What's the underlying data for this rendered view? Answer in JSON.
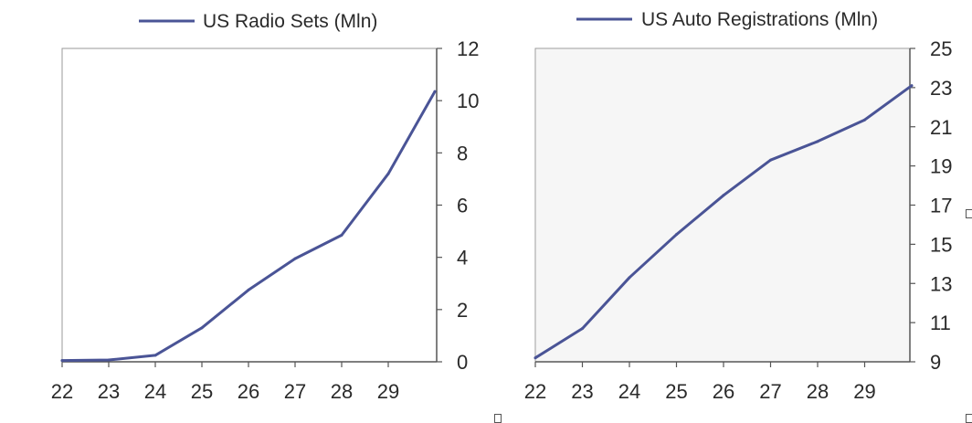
{
  "chart_data": [
    {
      "type": "line",
      "x": [
        "22",
        "23",
        "24",
        "25",
        "26",
        "27",
        "28",
        "29",
        "30"
      ],
      "series": [
        {
          "name": "US Radio Sets (Mln)",
          "values": [
            0.05,
            0.07,
            0.25,
            1.3,
            2.75,
            3.95,
            4.85,
            7.2,
            10.35
          ]
        }
      ],
      "xticks": [
        "22",
        "23",
        "24",
        "25",
        "26",
        "27",
        "28",
        "29"
      ],
      "yticks": [
        "0",
        "2",
        "4",
        "6",
        "8",
        "10",
        "12"
      ],
      "ylim": [
        0,
        12
      ],
      "y_axis_side": "right",
      "legend_position": "top",
      "grid": false,
      "color": "#4a5496"
    },
    {
      "type": "line",
      "x": [
        "22",
        "23",
        "24",
        "25",
        "26",
        "27",
        "28",
        "29",
        "30"
      ],
      "series": [
        {
          "name": "US Auto Registrations (Mln)",
          "values": [
            9.2,
            10.7,
            13.3,
            15.5,
            17.5,
            19.3,
            20.25,
            21.35,
            23.1
          ]
        }
      ],
      "xticks": [
        "22",
        "23",
        "24",
        "25",
        "26",
        "27",
        "28",
        "29"
      ],
      "yticks": [
        "9",
        "11",
        "13",
        "15",
        "17",
        "19",
        "21",
        "23",
        "25"
      ],
      "ylim": [
        9,
        25
      ],
      "y_axis_side": "right",
      "legend_position": "top",
      "grid": false,
      "color": "#4a5496"
    }
  ]
}
